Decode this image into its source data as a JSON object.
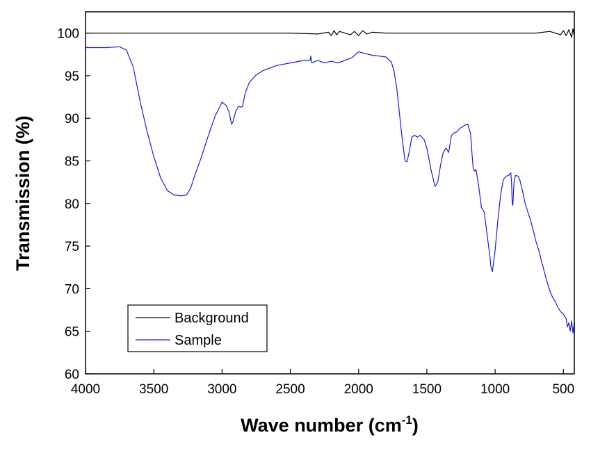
{
  "chart_data": {
    "type": "line",
    "title": "",
    "xlabel": "Wave number (cm",
    "xlabel_sup": "-1",
    "xlabel_close": ")",
    "ylabel": "Transmission (%)",
    "xlim": [
      4000,
      420
    ],
    "ylim": [
      60,
      102.5
    ],
    "x_reversed": true,
    "grid": false,
    "legend_position": "bottom-left",
    "x_ticks": [
      4000,
      3500,
      3000,
      2500,
      2000,
      1500,
      1000,
      500
    ],
    "y_ticks": [
      60,
      65,
      70,
      75,
      80,
      85,
      90,
      95,
      100
    ],
    "series": [
      {
        "name": "Background",
        "color": "#000000",
        "x": [
          4000,
          2500,
          2300,
          2220,
          2200,
          2180,
          2160,
          2140,
          2100,
          2060,
          2030,
          2000,
          1970,
          1940,
          1900,
          1800,
          1500,
          1000,
          700,
          600,
          520,
          500,
          480,
          460,
          440,
          430,
          420
        ],
        "y": [
          100.0,
          100.0,
          99.9,
          100.1,
          99.7,
          100.3,
          99.8,
          100.2,
          100.0,
          99.8,
          100.2,
          99.7,
          100.3,
          99.9,
          100.1,
          100.0,
          100.0,
          100.0,
          100.0,
          100.2,
          99.8,
          100.3,
          99.7,
          100.4,
          99.5,
          100.5,
          99.6
        ]
      },
      {
        "name": "Sample",
        "color": "#1a1adb",
        "x": [
          4000,
          3850,
          3750,
          3700,
          3650,
          3600,
          3550,
          3500,
          3450,
          3400,
          3350,
          3300,
          3260,
          3230,
          3200,
          3150,
          3100,
          3050,
          3000,
          2970,
          2950,
          2930,
          2920,
          2900,
          2880,
          2860,
          2850,
          2830,
          2800,
          2750,
          2700,
          2600,
          2500,
          2400,
          2355,
          2350,
          2345,
          2340,
          2330,
          2300,
          2250,
          2200,
          2150,
          2100,
          2050,
          2000,
          1950,
          1900,
          1850,
          1800,
          1760,
          1740,
          1720,
          1700,
          1680,
          1660,
          1645,
          1630,
          1610,
          1590,
          1570,
          1550,
          1520,
          1500,
          1470,
          1440,
          1420,
          1400,
          1380,
          1360,
          1340,
          1320,
          1300,
          1280,
          1260,
          1240,
          1220,
          1200,
          1180,
          1170,
          1160,
          1150,
          1140,
          1120,
          1100,
          1080,
          1060,
          1040,
          1030,
          1020,
          1000,
          980,
          960,
          940,
          920,
          900,
          885,
          880,
          875,
          870,
          865,
          860,
          850,
          830,
          820,
          800,
          780,
          760,
          740,
          720,
          700,
          680,
          660,
          640,
          620,
          600,
          580,
          560,
          540,
          520,
          500,
          480,
          470,
          460,
          450,
          440,
          430,
          420
        ],
        "y": [
          98.3,
          98.3,
          98.4,
          98.0,
          96.0,
          92.0,
          88.5,
          85.5,
          83.0,
          81.5,
          81.0,
          80.9,
          81.0,
          81.8,
          83.3,
          85.5,
          88.0,
          90.3,
          91.9,
          91.5,
          90.8,
          89.3,
          89.6,
          90.8,
          91.4,
          91.3,
          91.4,
          93.0,
          94.2,
          95.1,
          95.6,
          96.2,
          96.5,
          96.8,
          96.8,
          97.3,
          96.6,
          96.5,
          96.6,
          96.8,
          96.5,
          96.7,
          96.5,
          96.8,
          97.1,
          97.8,
          97.6,
          97.4,
          97.3,
          97.2,
          96.6,
          95.5,
          93.5,
          90.5,
          87.5,
          85.0,
          84.9,
          86.0,
          87.8,
          88.0,
          87.8,
          88.0,
          87.5,
          86.5,
          84.0,
          82.0,
          82.5,
          84.5,
          86.0,
          86.5,
          86.0,
          88.0,
          88.3,
          88.4,
          88.8,
          89.0,
          89.2,
          89.3,
          88.2,
          86.0,
          84.0,
          83.8,
          84.0,
          82.0,
          79.5,
          79.0,
          76.5,
          74.0,
          72.5,
          72.0,
          74.5,
          78.0,
          81.0,
          82.8,
          83.2,
          83.3,
          83.6,
          82.5,
          80.0,
          79.8,
          81.5,
          82.8,
          83.3,
          83.2,
          82.8,
          81.5,
          80.0,
          79.0,
          78.0,
          76.8,
          75.5,
          74.5,
          73.2,
          72.0,
          70.8,
          69.8,
          69.0,
          68.5,
          67.8,
          67.3,
          67.0,
          66.5,
          65.5,
          66.0,
          65.0,
          66.2,
          64.8,
          66.0
        ]
      }
    ]
  }
}
